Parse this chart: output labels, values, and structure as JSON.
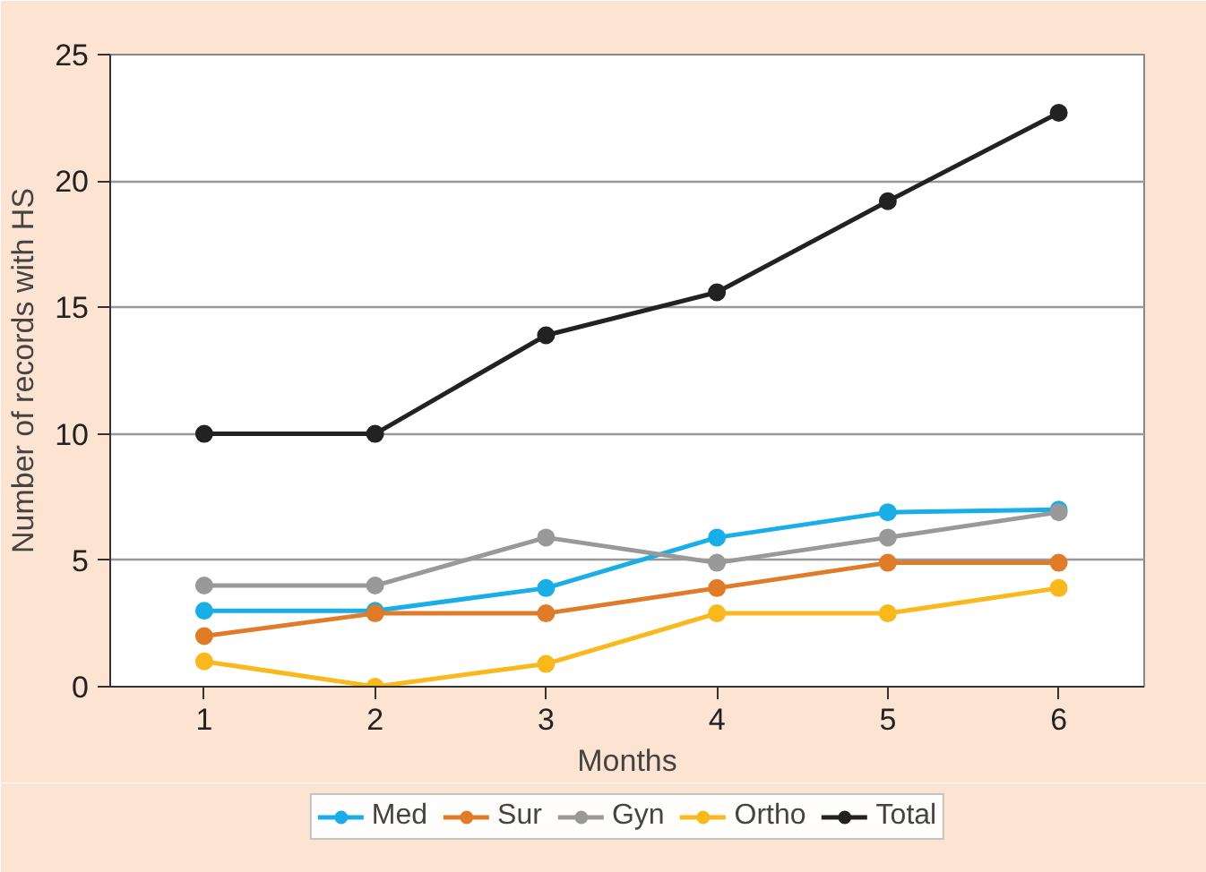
{
  "chart_data": {
    "type": "line",
    "xlabel": "Months",
    "ylabel": "Number of records with HS",
    "x": [
      1,
      2,
      3,
      4,
      5,
      6
    ],
    "series": [
      {
        "name": "Med",
        "color": "#1aaee8",
        "values": [
          3,
          3,
          3.9,
          5.9,
          6.9,
          7.0
        ]
      },
      {
        "name": "Sur",
        "color": "#e07b28",
        "values": [
          2,
          2.9,
          2.9,
          3.9,
          4.9,
          4.9
        ]
      },
      {
        "name": "Gyn",
        "color": "#999999",
        "values": [
          4,
          4,
          5.9,
          4.9,
          5.9,
          6.9
        ]
      },
      {
        "name": "Ortho",
        "color": "#f9b81b",
        "values": [
          1,
          0,
          0.9,
          2.9,
          2.9,
          3.9
        ]
      },
      {
        "name": "Total",
        "color": "#222222",
        "values": [
          10,
          10,
          13.9,
          15.6,
          19.2,
          22.7
        ]
      }
    ],
    "xlim": [
      0.45,
      6.5
    ],
    "ylim": [
      0,
      25
    ],
    "xticks": [
      1,
      2,
      3,
      4,
      5,
      6
    ],
    "yticks": [
      0,
      5,
      10,
      15,
      20,
      25
    ],
    "grid": "y",
    "legend": "bottom",
    "marker": "circle",
    "line_style": "solid"
  }
}
